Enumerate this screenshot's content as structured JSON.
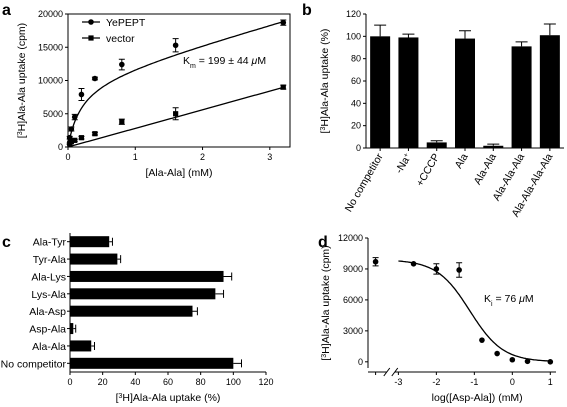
{
  "chart_data": [
    {
      "panel": "a",
      "type": "line",
      "xlabel": "[Ala-Ala] (mM)",
      "ylabel_parts": [
        "[",
        "3",
        "H]Ala-Ala uptake (cpm)"
      ],
      "xlim": [
        0,
        3.3
      ],
      "ylim": [
        0,
        20000
      ],
      "xticks": [
        0,
        1,
        2,
        3
      ],
      "yticks": [
        0,
        5000,
        10000,
        15000,
        20000
      ],
      "annotation_parts": [
        "K",
        "m",
        " = 199 ± 44 ",
        "μ",
        "M"
      ],
      "legend_position": "top-left",
      "series": [
        {
          "name": "YePEPT",
          "marker": "circle",
          "x": [
            0.025,
            0.05,
            0.1,
            0.2,
            0.4,
            0.8,
            1.6,
            3.2
          ],
          "y": [
            1400,
            2700,
            4500,
            7900,
            10300,
            12400,
            15300,
            18700
          ],
          "err": [
            200,
            300,
            400,
            900,
            200,
            800,
            1000,
            400
          ],
          "fit": "michaelis-menten+linear",
          "Vmax": 10500,
          "Km": 0.199,
          "linear_slope": 2800
        },
        {
          "name": "vector",
          "marker": "square",
          "x": [
            0.025,
            0.05,
            0.1,
            0.2,
            0.4,
            0.8,
            1.6,
            3.2
          ],
          "y": [
            500,
            800,
            1000,
            1400,
            2000,
            3800,
            5000,
            9000
          ],
          "err": [
            100,
            100,
            150,
            200,
            200,
            400,
            900,
            300
          ],
          "fit": "linear",
          "slope": 2800
        }
      ]
    },
    {
      "panel": "b",
      "type": "bar",
      "ylabel_parts": [
        "[",
        "3",
        "H]Ala-Ala uptake (%)"
      ],
      "ylim": [
        0,
        120
      ],
      "yticks": [
        0,
        20,
        40,
        60,
        80,
        100,
        120
      ],
      "categories": [
        "No competitor",
        "-Na",
        "+CCCP",
        "Ala",
        "Ala-Ala",
        "Ala-Ala-Ala",
        "Ala-Ala-Ala-Ala"
      ],
      "category_superscripts": [
        "",
        "+",
        "",
        "",
        "",
        "",
        ""
      ],
      "values": [
        100,
        99,
        5,
        98,
        2,
        91,
        101
      ],
      "errors": [
        10,
        3,
        1.5,
        7,
        1.5,
        4,
        10
      ]
    },
    {
      "panel": "c",
      "type": "bar",
      "orientation": "horizontal",
      "xlabel_parts": [
        "[",
        "3",
        "H]Ala-Ala uptake (%)"
      ],
      "xlim": [
        0,
        120
      ],
      "xticks": [
        0,
        20,
        40,
        60,
        80,
        100,
        120
      ],
      "categories": [
        "Ala-Tyr",
        "Tyr-Ala",
        "Ala-Lys",
        "Lys-Ala",
        "Ala-Asp",
        "Asp-Ala",
        "Ala-Ala",
        "No competitor"
      ],
      "values": [
        24,
        29,
        94,
        89,
        75,
        2,
        13,
        100
      ],
      "errors": [
        2,
        2,
        5,
        5,
        3,
        1.5,
        2,
        5
      ]
    },
    {
      "panel": "d",
      "type": "scatter",
      "xlabel": "log([Asp-Ala]) (mM)",
      "ylabel_parts": [
        "[",
        "3",
        "H]Ala-Ala uptake (cpm)"
      ],
      "xlim": [
        -3.8,
        1.15
      ],
      "ylim": [
        -600,
        12000
      ],
      "xticks": [
        -3,
        -2,
        -1,
        0,
        1
      ],
      "yticks": [
        0,
        3000,
        6000,
        9000,
        12000
      ],
      "axis_break": "left of x = -3",
      "annotation_parts": [
        "K",
        "i",
        " = 76 ",
        "μ",
        "M"
      ],
      "points": {
        "x": [
          -3.6,
          -2.6,
          -2.0,
          -1.4,
          -0.8,
          -0.4,
          0.0,
          0.4,
          1.0
        ],
        "y": [
          9700,
          9500,
          9000,
          8900,
          2100,
          800,
          200,
          50,
          0
        ],
        "err": [
          400,
          0,
          500,
          700,
          0,
          0,
          0,
          0,
          0
        ]
      },
      "fit": {
        "type": "sigmoid",
        "top": 9900,
        "bottom": 0,
        "logIC50": -1.12,
        "hill": -1
      }
    }
  ]
}
